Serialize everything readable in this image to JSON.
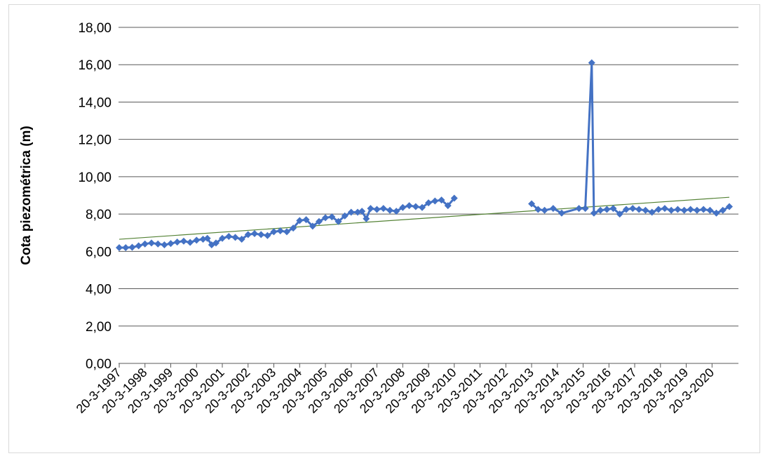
{
  "chart_data": {
    "type": "line",
    "title": "",
    "ylabel": "Cota piezométrica (m)",
    "xlabel": "",
    "ylim": [
      0,
      18
    ],
    "yticks": [
      "0,00",
      "2,00",
      "4,00",
      "6,00",
      "8,00",
      "10,00",
      "12,00",
      "14,00",
      "16,00",
      "18,00"
    ],
    "xticks": [
      "20-3-1997",
      "20-3-1998",
      "20-3-1999",
      "20-3-2000",
      "20-3-2001",
      "20-3-2002",
      "20-3-2003",
      "20-3-2004",
      "20-3-2005",
      "20-3-2006",
      "20-3-2007",
      "20-3-2008",
      "20-3-2009",
      "20-3-2010",
      "20-3-2011",
      "20-3-2012",
      "20-3-2013",
      "20-3-2014",
      "20-3-2015",
      "20-3-2016",
      "20-3-2017",
      "20-3-2018",
      "20-3-2019",
      "20-3-2020"
    ],
    "xlim": [
      "1997-03-20",
      "2020-11-20"
    ],
    "grid": "horizontal",
    "series": [
      {
        "color": "#4472c4",
        "marker": "diamond",
        "segments": [
          [
            [
              "1997-03-20",
              6.2
            ],
            [
              "1997-06-20",
              6.2
            ],
            [
              "1997-09-20",
              6.22
            ],
            [
              "1997-12-20",
              6.3
            ],
            [
              "1998-03-20",
              6.4
            ],
            [
              "1998-06-20",
              6.45
            ],
            [
              "1998-09-20",
              6.4
            ],
            [
              "1998-12-20",
              6.35
            ],
            [
              "1999-03-20",
              6.42
            ],
            [
              "1999-06-20",
              6.5
            ],
            [
              "1999-09-20",
              6.55
            ],
            [
              "1999-12-20",
              6.48
            ],
            [
              "2000-03-20",
              6.6
            ],
            [
              "2000-06-20",
              6.65
            ],
            [
              "2000-08-20",
              6.7
            ],
            [
              "2000-10-20",
              6.35
            ],
            [
              "2000-12-20",
              6.45
            ],
            [
              "2001-03-20",
              6.7
            ],
            [
              "2001-06-20",
              6.8
            ],
            [
              "2001-09-20",
              6.75
            ],
            [
              "2001-12-20",
              6.65
            ],
            [
              "2002-03-20",
              6.9
            ],
            [
              "2002-06-20",
              6.95
            ],
            [
              "2002-09-20",
              6.9
            ],
            [
              "2002-12-20",
              6.85
            ],
            [
              "2003-03-20",
              7.05
            ],
            [
              "2003-06-20",
              7.1
            ],
            [
              "2003-09-20",
              7.05
            ],
            [
              "2003-12-20",
              7.25
            ],
            [
              "2004-03-20",
              7.65
            ],
            [
              "2004-06-20",
              7.7
            ],
            [
              "2004-09-20",
              7.35
            ],
            [
              "2004-12-20",
              7.6
            ],
            [
              "2005-03-20",
              7.8
            ],
            [
              "2005-06-20",
              7.85
            ],
            [
              "2005-09-20",
              7.6
            ],
            [
              "2005-12-20",
              7.9
            ],
            [
              "2006-03-20",
              8.1
            ],
            [
              "2006-06-20",
              8.1
            ],
            [
              "2006-08-20",
              8.15
            ],
            [
              "2006-10-20",
              7.75
            ],
            [
              "2006-12-20",
              8.3
            ],
            [
              "2007-03-20",
              8.25
            ],
            [
              "2007-06-20",
              8.3
            ],
            [
              "2007-09-20",
              8.2
            ],
            [
              "2007-12-20",
              8.15
            ],
            [
              "2008-03-20",
              8.35
            ],
            [
              "2008-06-20",
              8.45
            ],
            [
              "2008-09-20",
              8.4
            ],
            [
              "2008-12-20",
              8.35
            ],
            [
              "2009-03-20",
              8.6
            ],
            [
              "2009-06-20",
              8.7
            ],
            [
              "2009-09-20",
              8.75
            ],
            [
              "2009-12-20",
              8.45
            ],
            [
              "2010-03-20",
              8.85
            ]
          ],
          [
            [
              "2013-03-20",
              8.55
            ],
            [
              "2013-06-20",
              8.25
            ],
            [
              "2013-09-20",
              8.2
            ],
            [
              "2014-01-20",
              8.3
            ],
            [
              "2014-05-20",
              8.05
            ],
            [
              "2015-01-20",
              8.3
            ],
            [
              "2015-04-20",
              8.3
            ],
            [
              "2015-07-20",
              16.1
            ],
            [
              "2015-08-20",
              8.05
            ],
            [
              "2015-11-20",
              8.2
            ],
            [
              "2016-02-20",
              8.25
            ],
            [
              "2016-05-20",
              8.3
            ],
            [
              "2016-08-20",
              8.0
            ],
            [
              "2016-11-20",
              8.25
            ],
            [
              "2017-02-20",
              8.3
            ],
            [
              "2017-05-20",
              8.25
            ],
            [
              "2017-08-20",
              8.2
            ],
            [
              "2017-11-20",
              8.1
            ],
            [
              "2018-02-20",
              8.25
            ],
            [
              "2018-05-20",
              8.3
            ],
            [
              "2018-08-20",
              8.2
            ],
            [
              "2018-11-20",
              8.25
            ],
            [
              "2019-02-20",
              8.2
            ],
            [
              "2019-05-20",
              8.25
            ],
            [
              "2019-08-20",
              8.2
            ],
            [
              "2019-11-20",
              8.25
            ],
            [
              "2020-02-20",
              8.2
            ],
            [
              "2020-05-20",
              8.05
            ],
            [
              "2020-08-20",
              8.2
            ],
            [
              "2020-11-20",
              8.4
            ]
          ]
        ]
      }
    ],
    "trendline": {
      "type": "linear",
      "color": "#548235",
      "start": [
        "1997-03-20",
        6.65
      ],
      "end": [
        "2020-11-20",
        8.9
      ]
    }
  }
}
